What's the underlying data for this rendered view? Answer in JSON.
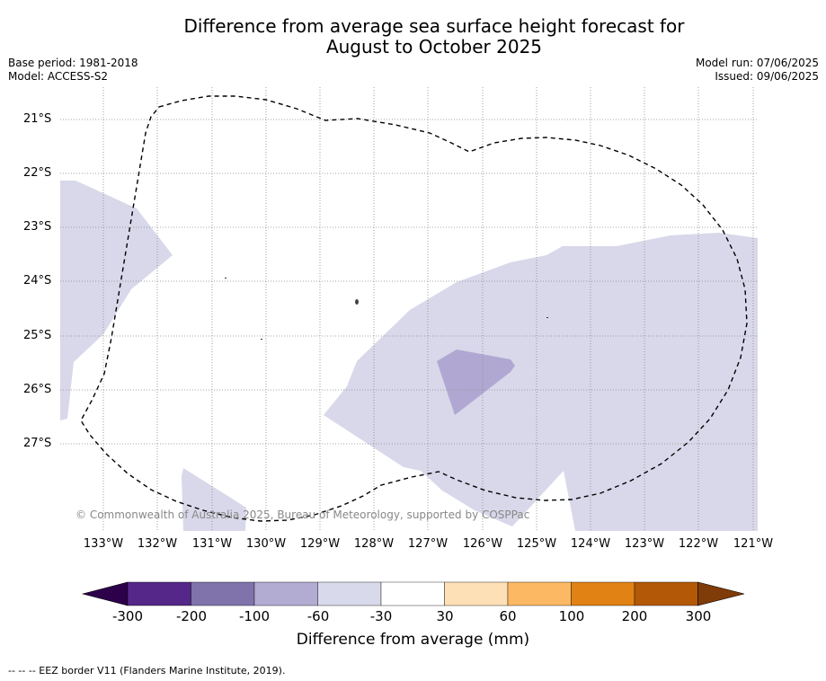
{
  "title_line1": "Difference from average sea surface height forecast for",
  "title_line2": "August to October 2025",
  "meta_left": {
    "base_period": "Base period: 1981-2018",
    "model": "Model: ACCESS-S2"
  },
  "meta_right": {
    "model_run": "Model run: 07/06/2025",
    "issued": "Issued: 09/06/2025"
  },
  "map": {
    "lat_labels": [
      "21°S",
      "22°S",
      "23°S",
      "24°S",
      "25°S",
      "26°S",
      "27°S"
    ],
    "lon_labels": [
      "133°W",
      "132°W",
      "131°W",
      "130°W",
      "129°W",
      "128°W",
      "127°W",
      "126°W",
      "125°W",
      "124°W",
      "123°W",
      "122°W",
      "121°W"
    ],
    "copyright": "© Commonwealth of Australia 2025, Bureau of Meteorology, supported by COSPPac",
    "colors": {
      "minus60_minus30": "#d8d8ea",
      "minus100_minus60": "#b0a8d2",
      "eez_border": "#000000"
    }
  },
  "colorbar": {
    "title": "Difference from average (mm)",
    "tick_labels": [
      "-300",
      "-200",
      "-100",
      "-60",
      "-30",
      "30",
      "60",
      "100",
      "200",
      "300"
    ],
    "colors": [
      "#2d004b",
      "#542788",
      "#8073ac",
      "#b2abd2",
      "#d8daeb",
      "#ffffff",
      "#fee0b6",
      "#fdb863",
      "#e08214",
      "#b35806",
      "#7f3b08"
    ]
  },
  "footnote": "--  --  -- EEZ border V11 (Flanders Marine Institute, 2019)."
}
